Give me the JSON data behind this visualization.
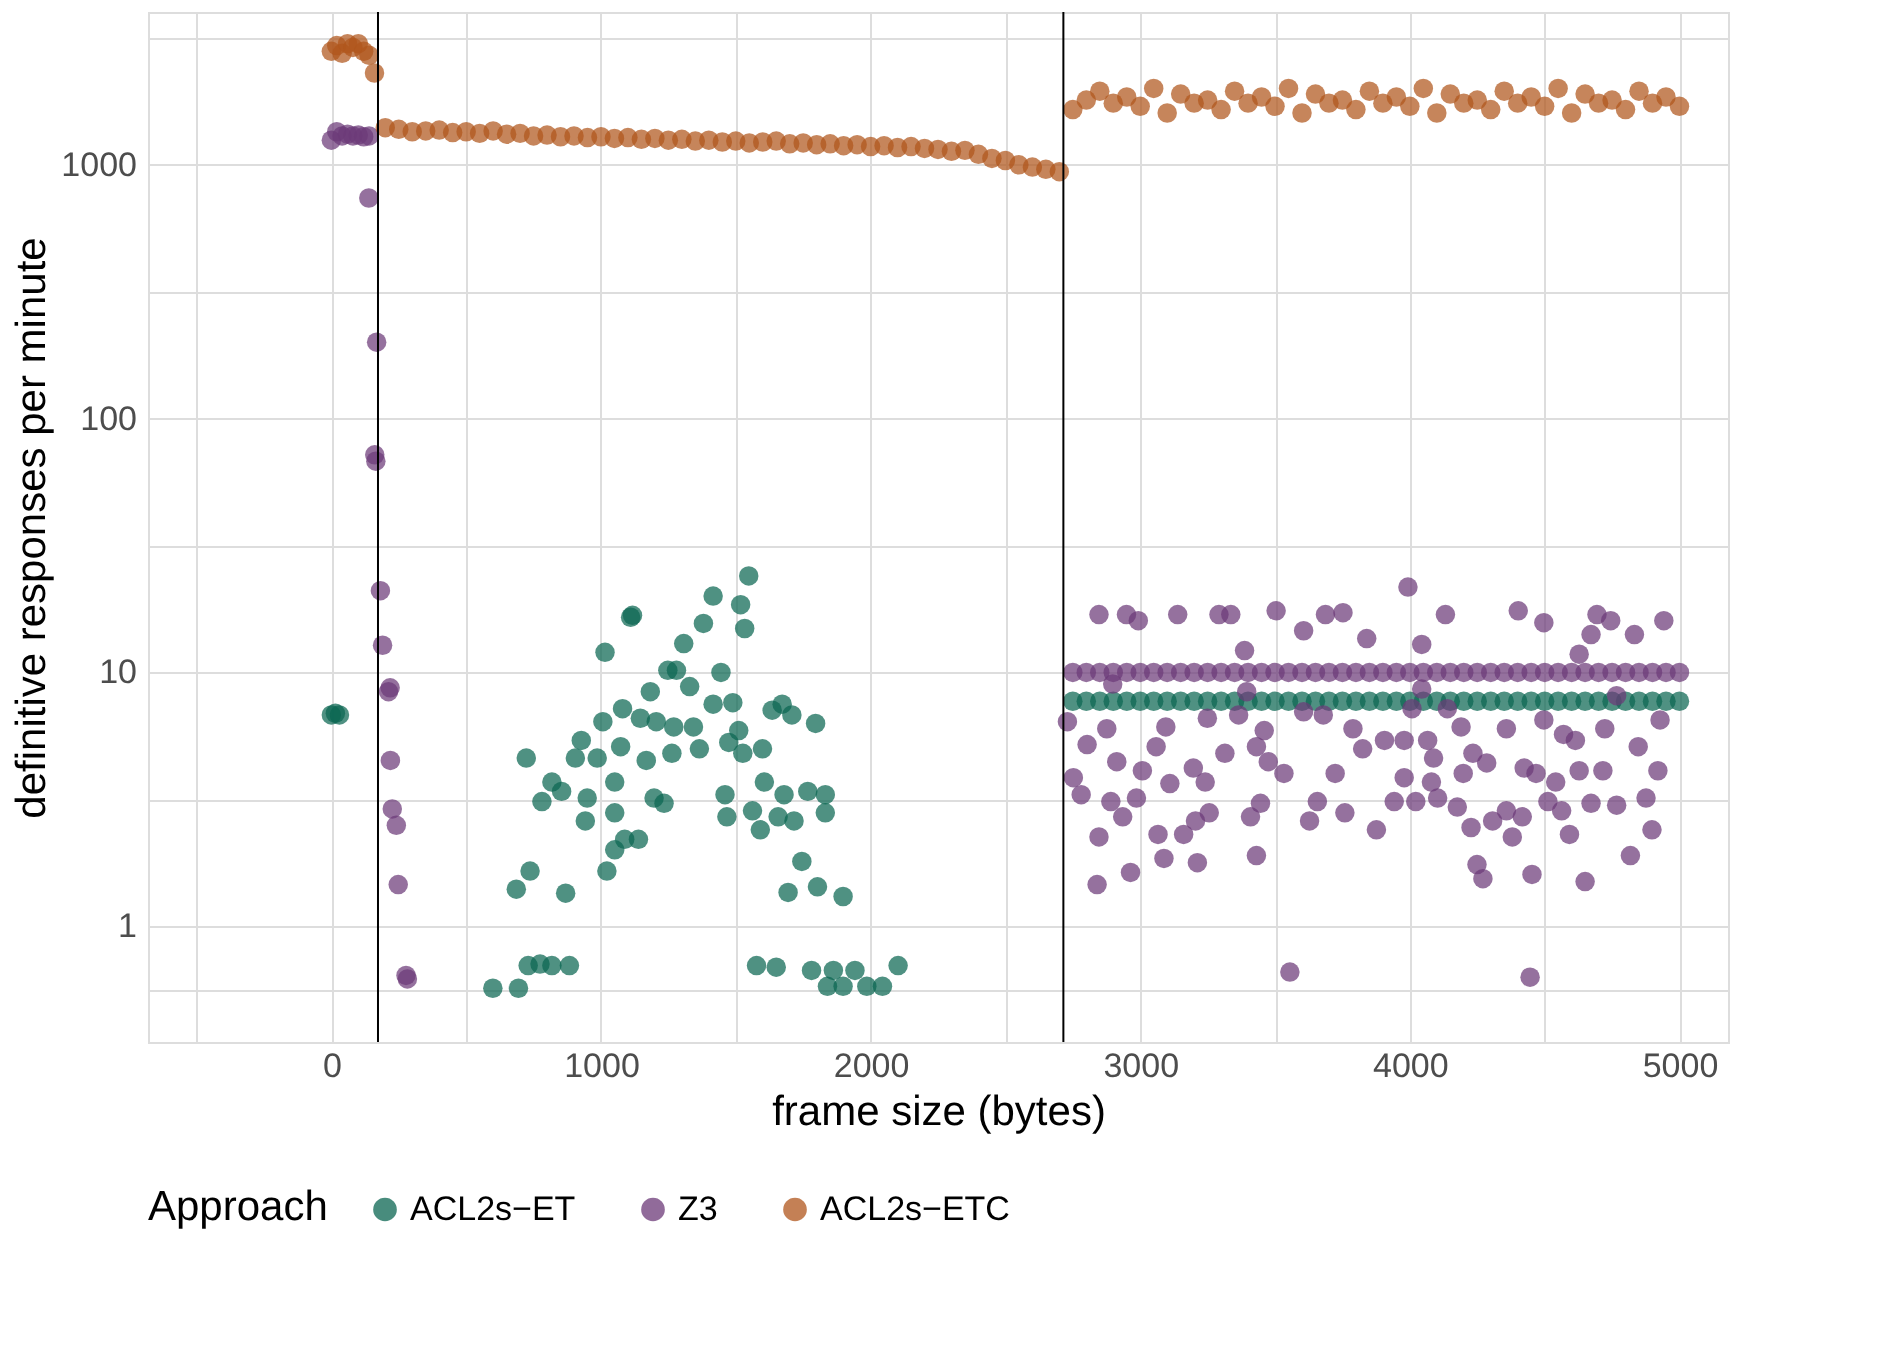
{
  "chart_data": {
    "type": "scatter",
    "xlabel": "frame size (bytes)",
    "ylabel": "definitive responses per minute",
    "legend_title": "Approach",
    "legend": "bottom",
    "marker": "circle",
    "grid": true,
    "log": "y",
    "xlim": [
      -680,
      5180
    ],
    "ylim": [
      0.35,
      4000
    ],
    "xticks": [
      {
        "value": -500,
        "label": null
      },
      0,
      {
        "value": 500,
        "label": null
      },
      1000,
      {
        "value": 1500,
        "label": null
      },
      2000,
      {
        "value": 2500,
        "label": null
      },
      3000,
      {
        "value": 3500,
        "label": null
      },
      4000,
      {
        "value": 4500,
        "label": null
      },
      5000
    ],
    "yticks": [
      {
        "value": 0.5623,
        "label": null
      },
      1,
      {
        "value": 3.162,
        "label": null
      },
      10,
      {
        "value": 31.62,
        "label": null
      },
      100,
      {
        "value": 316.2,
        "label": null
      },
      1000,
      {
        "value": 3162,
        "label": null
      }
    ],
    "ref_lines": [
      {
        "axis": "x",
        "value": 173,
        "color": "#000000"
      },
      {
        "axis": "x",
        "value": 2715,
        "color": "#000000"
      }
    ],
    "series": [
      {
        "name": "ACL2s−ET",
        "color": "#0b6652",
        "x": [
          0,
          15,
          30,
          1548,
          1416,
          1518,
          1533,
          1117,
          1110,
          1380,
          1307,
          1015,
          1248,
          1445,
          1280,
          1183,
          1329,
          1489,
          1416,
          1080,
          1146,
          1205,
          1672,
          1635,
          1708,
          1796,
          1007,
          1270,
          1343,
          927,
          1073,
          1511,
          1474,
          1365,
          1599,
          723,
          905,
          986,
          1168,
          1263,
          1526,
          818,
          781,
          854,
          949,
          1051,
          942,
          1051,
          1197,
          1234,
          1460,
          1606,
          1679,
          1767,
          1832,
          1832,
          1467,
          1562,
          1657,
          1716,
          1591,
          1139,
          1088,
          1051,
          1022,
          737,
          686,
          869,
          1745,
          1694,
          1803,
          1898,
          599,
          694,
          730,
          774,
          818,
          883,
          1577,
          1650,
          1781,
          1862,
          1898,
          1942,
          1986,
          2044,
          2102,
          1840,
          2750,
          2800,
          2850,
          2900,
          2950,
          3000,
          3050,
          3100,
          3150,
          3200,
          3250,
          3300,
          3350,
          3400,
          3450,
          3500,
          3550,
          3600,
          3650,
          3700,
          3750,
          3800,
          3850,
          3900,
          3950,
          4000,
          4050,
          4100,
          4150,
          4200,
          4250,
          4300,
          4350,
          4400,
          4450,
          4500,
          4550,
          4600,
          4650,
          4700,
          4750,
          4800,
          4850,
          4900,
          4950,
          5000
        ],
        "values": [
          6.8,
          6.9,
          6.8,
          24,
          20,
          18.5,
          14.9,
          16.8,
          16.5,
          15.6,
          13,
          12,
          10.2,
          10,
          10.2,
          8.4,
          8.8,
          7.6,
          7.5,
          7.2,
          6.6,
          6.4,
          7.5,
          7.1,
          6.8,
          6.3,
          6.4,
          6.1,
          6.1,
          5.4,
          5.1,
          5.9,
          5.3,
          5.0,
          5.0,
          4.6,
          4.6,
          4.6,
          4.5,
          4.8,
          4.8,
          3.7,
          3.1,
          3.4,
          3.2,
          3.7,
          2.6,
          2.8,
          3.2,
          3.05,
          3.3,
          3.7,
          3.3,
          3.4,
          3.3,
          2.8,
          2.7,
          2.85,
          2.7,
          2.6,
          2.4,
          2.2,
          2.2,
          2.0,
          1.65,
          1.65,
          1.4,
          1.35,
          1.8,
          1.36,
          1.43,
          1.31,
          0.57,
          0.57,
          0.7,
          0.71,
          0.7,
          0.7,
          0.7,
          0.69,
          0.67,
          0.67,
          0.58,
          0.67,
          0.58,
          0.58,
          0.7,
          0.58,
          7.7,
          7.7,
          7.7,
          7.7,
          7.7,
          7.7,
          7.7,
          7.7,
          7.7,
          7.7,
          7.7,
          7.7,
          7.7,
          7.7,
          7.7,
          7.7,
          7.7,
          7.7,
          7.7,
          7.7,
          7.7,
          7.7,
          7.7,
          7.7,
          7.7,
          7.7,
          7.7,
          7.7,
          7.7,
          7.7,
          7.7,
          7.7,
          7.7,
          7.7,
          7.7,
          7.7,
          7.7,
          7.7,
          7.7,
          7.7,
          7.7,
          7.7,
          7.7,
          7.7,
          7.7,
          7.7
        ]
      },
      {
        "name": "Z3",
        "color": "#6c3a78",
        "x": [
          0,
          20,
          40,
          60,
          80,
          100,
          120,
          140,
          139,
          168,
          161,
          165,
          182,
          190,
          212,
          218,
          219,
          226,
          241,
          248,
          277,
          282,
          2750,
          2800,
          2850,
          2900,
          2950,
          3000,
          3050,
          3100,
          3150,
          3200,
          3250,
          3300,
          3350,
          3400,
          3450,
          3500,
          3550,
          3600,
          3650,
          3700,
          3750,
          3800,
          3850,
          3900,
          3950,
          4000,
          4050,
          4100,
          4150,
          4200,
          4250,
          4300,
          4350,
          4400,
          4450,
          4500,
          4550,
          4600,
          4650,
          4700,
          4750,
          4800,
          4850,
          4900,
          4950,
          5000,
          2847,
          2949,
          2993,
          3139,
          3292,
          3336,
          3504,
          3606,
          3687,
          3752,
          3840,
          3993,
          4044,
          4132,
          4402,
          4497,
          4694,
          4745,
          4672,
          4833,
          4942,
          3387,
          4628,
          2730,
          2803,
          2876,
          2752,
          2781,
          2913,
          2891,
          2935,
          2847,
          2840,
          2964,
          3059,
          3008,
          3110,
          2986,
          3066,
          3088,
          3197,
          3241,
          3161,
          3205,
          3256,
          3212,
          3314,
          3431,
          3475,
          3533,
          3409,
          3446,
          3431,
          3460,
          3555,
          3657,
          3628,
          3723,
          3759,
          3876,
          3789,
          3825,
          3906,
          3979,
          3942,
          3979,
          4022,
          4080,
          4088,
          4103,
          4176,
          4227,
          4198,
          4234,
          4285,
          4249,
          4271,
          4307,
          4358,
          4380,
          4417,
          4453,
          4424,
          4468,
          4446,
          4512,
          4541,
          4563,
          4592,
          4570,
          4614,
          4628,
          4650,
          4672,
          4716,
          4767,
          4818,
          4876,
          4898,
          4920,
          4847,
          4723,
          4928,
          4497,
          4358,
          4190,
          4066,
          3095,
          3249,
          3365,
          3606,
          3679,
          4008,
          4139,
          4767,
          2898,
          3395,
          4044
        ],
        "values": [
          1250,
          1350,
          1300,
          1320,
          1300,
          1310,
          1290,
          1300,
          740,
          200,
          72,
          68,
          21,
          12.8,
          8.4,
          8.7,
          4.5,
          2.9,
          2.5,
          1.46,
          0.64,
          0.62,
          10,
          10,
          10,
          10,
          10,
          10,
          10,
          10,
          10,
          10,
          10,
          10,
          10,
          10,
          10,
          10,
          10,
          10,
          10,
          10,
          10,
          10,
          10,
          10,
          10,
          10,
          10,
          10,
          10,
          10,
          10,
          10,
          10,
          10,
          10,
          10,
          10,
          10,
          10,
          10,
          10,
          10,
          10,
          10,
          10,
          10,
          16.9,
          16.9,
          16,
          16.9,
          16.9,
          16.9,
          17.5,
          14.6,
          16.9,
          17.2,
          13.6,
          21.7,
          12.9,
          16.9,
          17.5,
          15.7,
          16.9,
          16,
          14.1,
          14.1,
          16,
          12.2,
          11.8,
          6.4,
          5.2,
          6.0,
          3.85,
          3.3,
          4.45,
          3.1,
          2.7,
          2.25,
          1.46,
          1.63,
          5.1,
          4.1,
          3.65,
          3.2,
          2.3,
          1.85,
          4.2,
          3.7,
          2.3,
          2.6,
          2.8,
          1.78,
          4.8,
          5.1,
          4.45,
          4.0,
          2.7,
          3.05,
          1.9,
          5.9,
          0.66,
          3.1,
          2.6,
          4.0,
          2.8,
          2.4,
          6.0,
          5.0,
          5.4,
          5.4,
          3.1,
          3.85,
          3.1,
          3.7,
          4.6,
          3.2,
          2.95,
          2.45,
          4.0,
          4.8,
          4.4,
          1.75,
          1.54,
          2.6,
          2.85,
          2.25,
          2.7,
          1.6,
          4.2,
          4.0,
          0.63,
          3.1,
          3.7,
          2.85,
          2.3,
          5.7,
          5.4,
          4.1,
          1.5,
          3.05,
          4.1,
          3.0,
          1.9,
          3.2,
          2.4,
          4.1,
          5.1,
          6.0,
          6.5,
          6.5,
          6.0,
          6.1,
          5.4,
          6.1,
          6.6,
          6.8,
          7.0,
          6.8,
          7.2,
          7.2,
          8.1,
          9.0,
          8.4,
          8.6
        ]
      },
      {
        "name": "ACL2s−ETC",
        "color": "#b0561c",
        "x": [
          0,
          20,
          40,
          60,
          80,
          100,
          120,
          140,
          160,
          200,
          250,
          300,
          350,
          400,
          450,
          500,
          550,
          600,
          650,
          700,
          750,
          800,
          850,
          900,
          950,
          1000,
          1050,
          1100,
          1150,
          1200,
          1250,
          1300,
          1350,
          1400,
          1450,
          1500,
          1550,
          1600,
          1650,
          1700,
          1750,
          1800,
          1850,
          1900,
          1950,
          2000,
          2050,
          2100,
          2150,
          2200,
          2250,
          2300,
          2350,
          2400,
          2450,
          2500,
          2550,
          2600,
          2650,
          2700,
          2750,
          2800,
          2850,
          2900,
          2950,
          3000,
          3050,
          3100,
          3150,
          3200,
          3250,
          3300,
          3350,
          3400,
          3450,
          3500,
          3550,
          3600,
          3650,
          3700,
          3750,
          3800,
          3850,
          3900,
          3950,
          4000,
          4050,
          4100,
          4150,
          4200,
          4250,
          4300,
          4350,
          4400,
          4450,
          4500,
          4550,
          4600,
          4650,
          4700,
          4750,
          4800,
          4850,
          4900,
          4950,
          5000
        ],
        "values": [
          2800,
          2950,
          2750,
          3000,
          2900,
          3000,
          2800,
          2700,
          2300,
          1400,
          1380,
          1350,
          1360,
          1370,
          1340,
          1350,
          1330,
          1360,
          1320,
          1330,
          1300,
          1310,
          1290,
          1300,
          1280,
          1290,
          1270,
          1280,
          1260,
          1270,
          1250,
          1260,
          1240,
          1250,
          1230,
          1240,
          1220,
          1230,
          1240,
          1210,
          1220,
          1200,
          1210,
          1190,
          1200,
          1180,
          1190,
          1170,
          1180,
          1160,
          1150,
          1130,
          1140,
          1100,
          1060,
          1040,
          1000,
          980,
          960,
          940,
          1650,
          1800,
          1950,
          1750,
          1850,
          1700,
          2000,
          1600,
          1900,
          1750,
          1800,
          1650,
          1950,
          1750,
          1850,
          1700,
          2000,
          1600,
          1900,
          1750,
          1800,
          1650,
          1950,
          1750,
          1850,
          1700,
          2000,
          1600,
          1900,
          1750,
          1800,
          1650,
          1950,
          1750,
          1850,
          1700,
          2000,
          1600,
          1900,
          1750,
          1800,
          1650,
          1950,
          1750,
          1850,
          1700
        ]
      }
    ]
  }
}
